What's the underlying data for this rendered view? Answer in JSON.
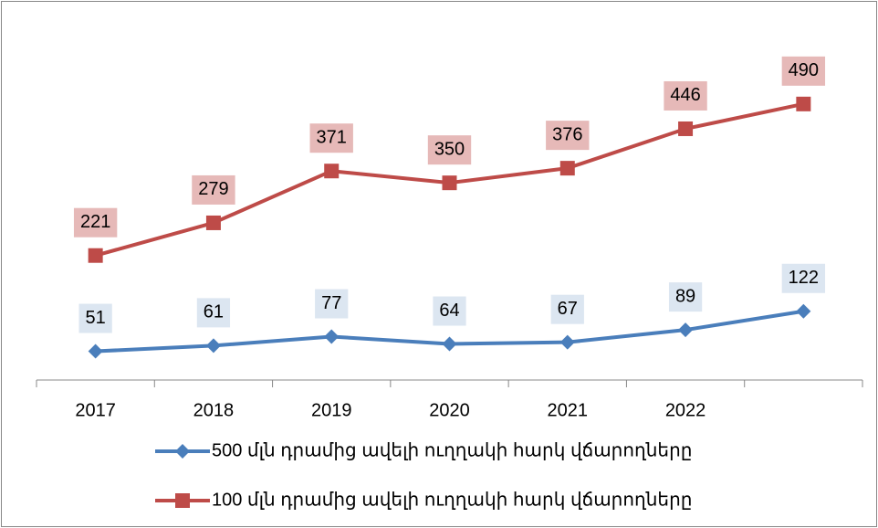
{
  "chart_data": {
    "type": "line",
    "categories": [
      "2017",
      "2018",
      "2019",
      "2020",
      "2021",
      "2022",
      null
    ],
    "series": [
      {
        "name": "500 մլն դրամից ավելի ուղղակի հարկ վճարողները",
        "color": "#4a7ebb",
        "label_fill": "#dce6f1",
        "marker": "diamond",
        "values": [
          51,
          61,
          77,
          64,
          67,
          89,
          122
        ]
      },
      {
        "name": "100 մլն դրամից ավելի ուղղակի հարկ վճարողները",
        "color": "#be4b48",
        "label_fill": "#e6b9b8",
        "marker": "square",
        "values": [
          221,
          279,
          371,
          350,
          376,
          446,
          490
        ]
      }
    ],
    "ylim": [
      0,
      600
    ],
    "legend": "bottom"
  }
}
